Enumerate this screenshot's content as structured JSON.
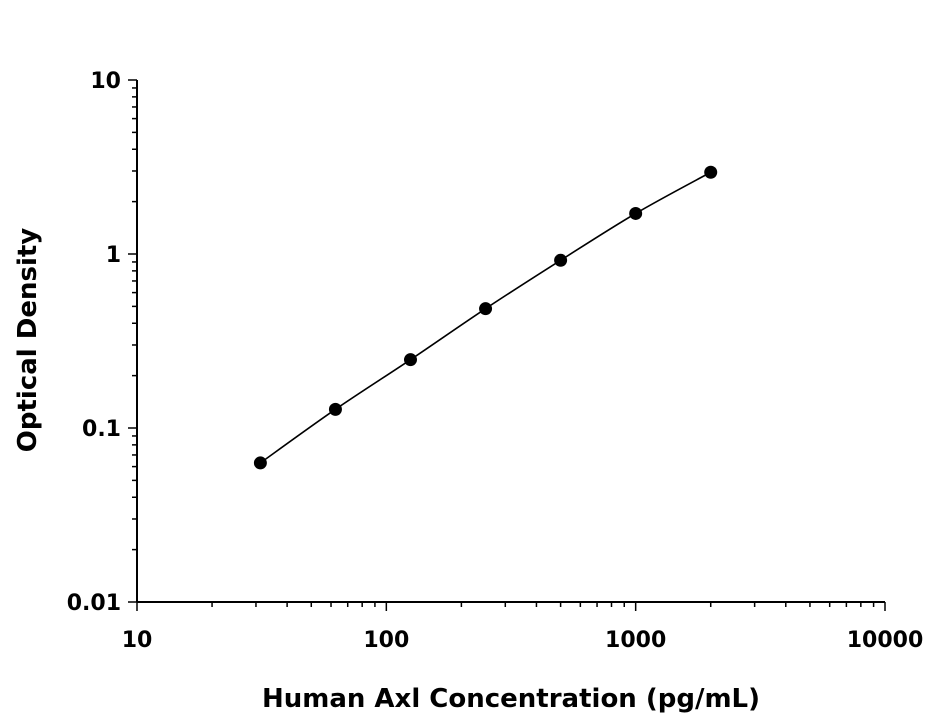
{
  "chart_data": {
    "type": "scatter",
    "title": "",
    "xlabel": "Human Axl Concentration (pg/mL)",
    "ylabel": "Optical Density",
    "x_scale": "log",
    "y_scale": "log",
    "xlim": [
      10,
      10000
    ],
    "ylim": [
      0.01,
      10
    ],
    "x_tick_labels": [
      "10",
      "100",
      "1000",
      "10000"
    ],
    "y_tick_labels": [
      "0.01",
      "0.1",
      "1",
      "10"
    ],
    "grid": false,
    "fit_line": true,
    "series": [
      {
        "x": [
          31.25,
          62.5,
          125,
          250,
          500,
          1000,
          2000
        ],
        "y": [
          0.063,
          0.128,
          0.247,
          0.485,
          0.92,
          1.71,
          2.95
        ]
      }
    ],
    "colors": {
      "marker": "#000000",
      "line": "#000000",
      "axis": "#000000"
    }
  }
}
